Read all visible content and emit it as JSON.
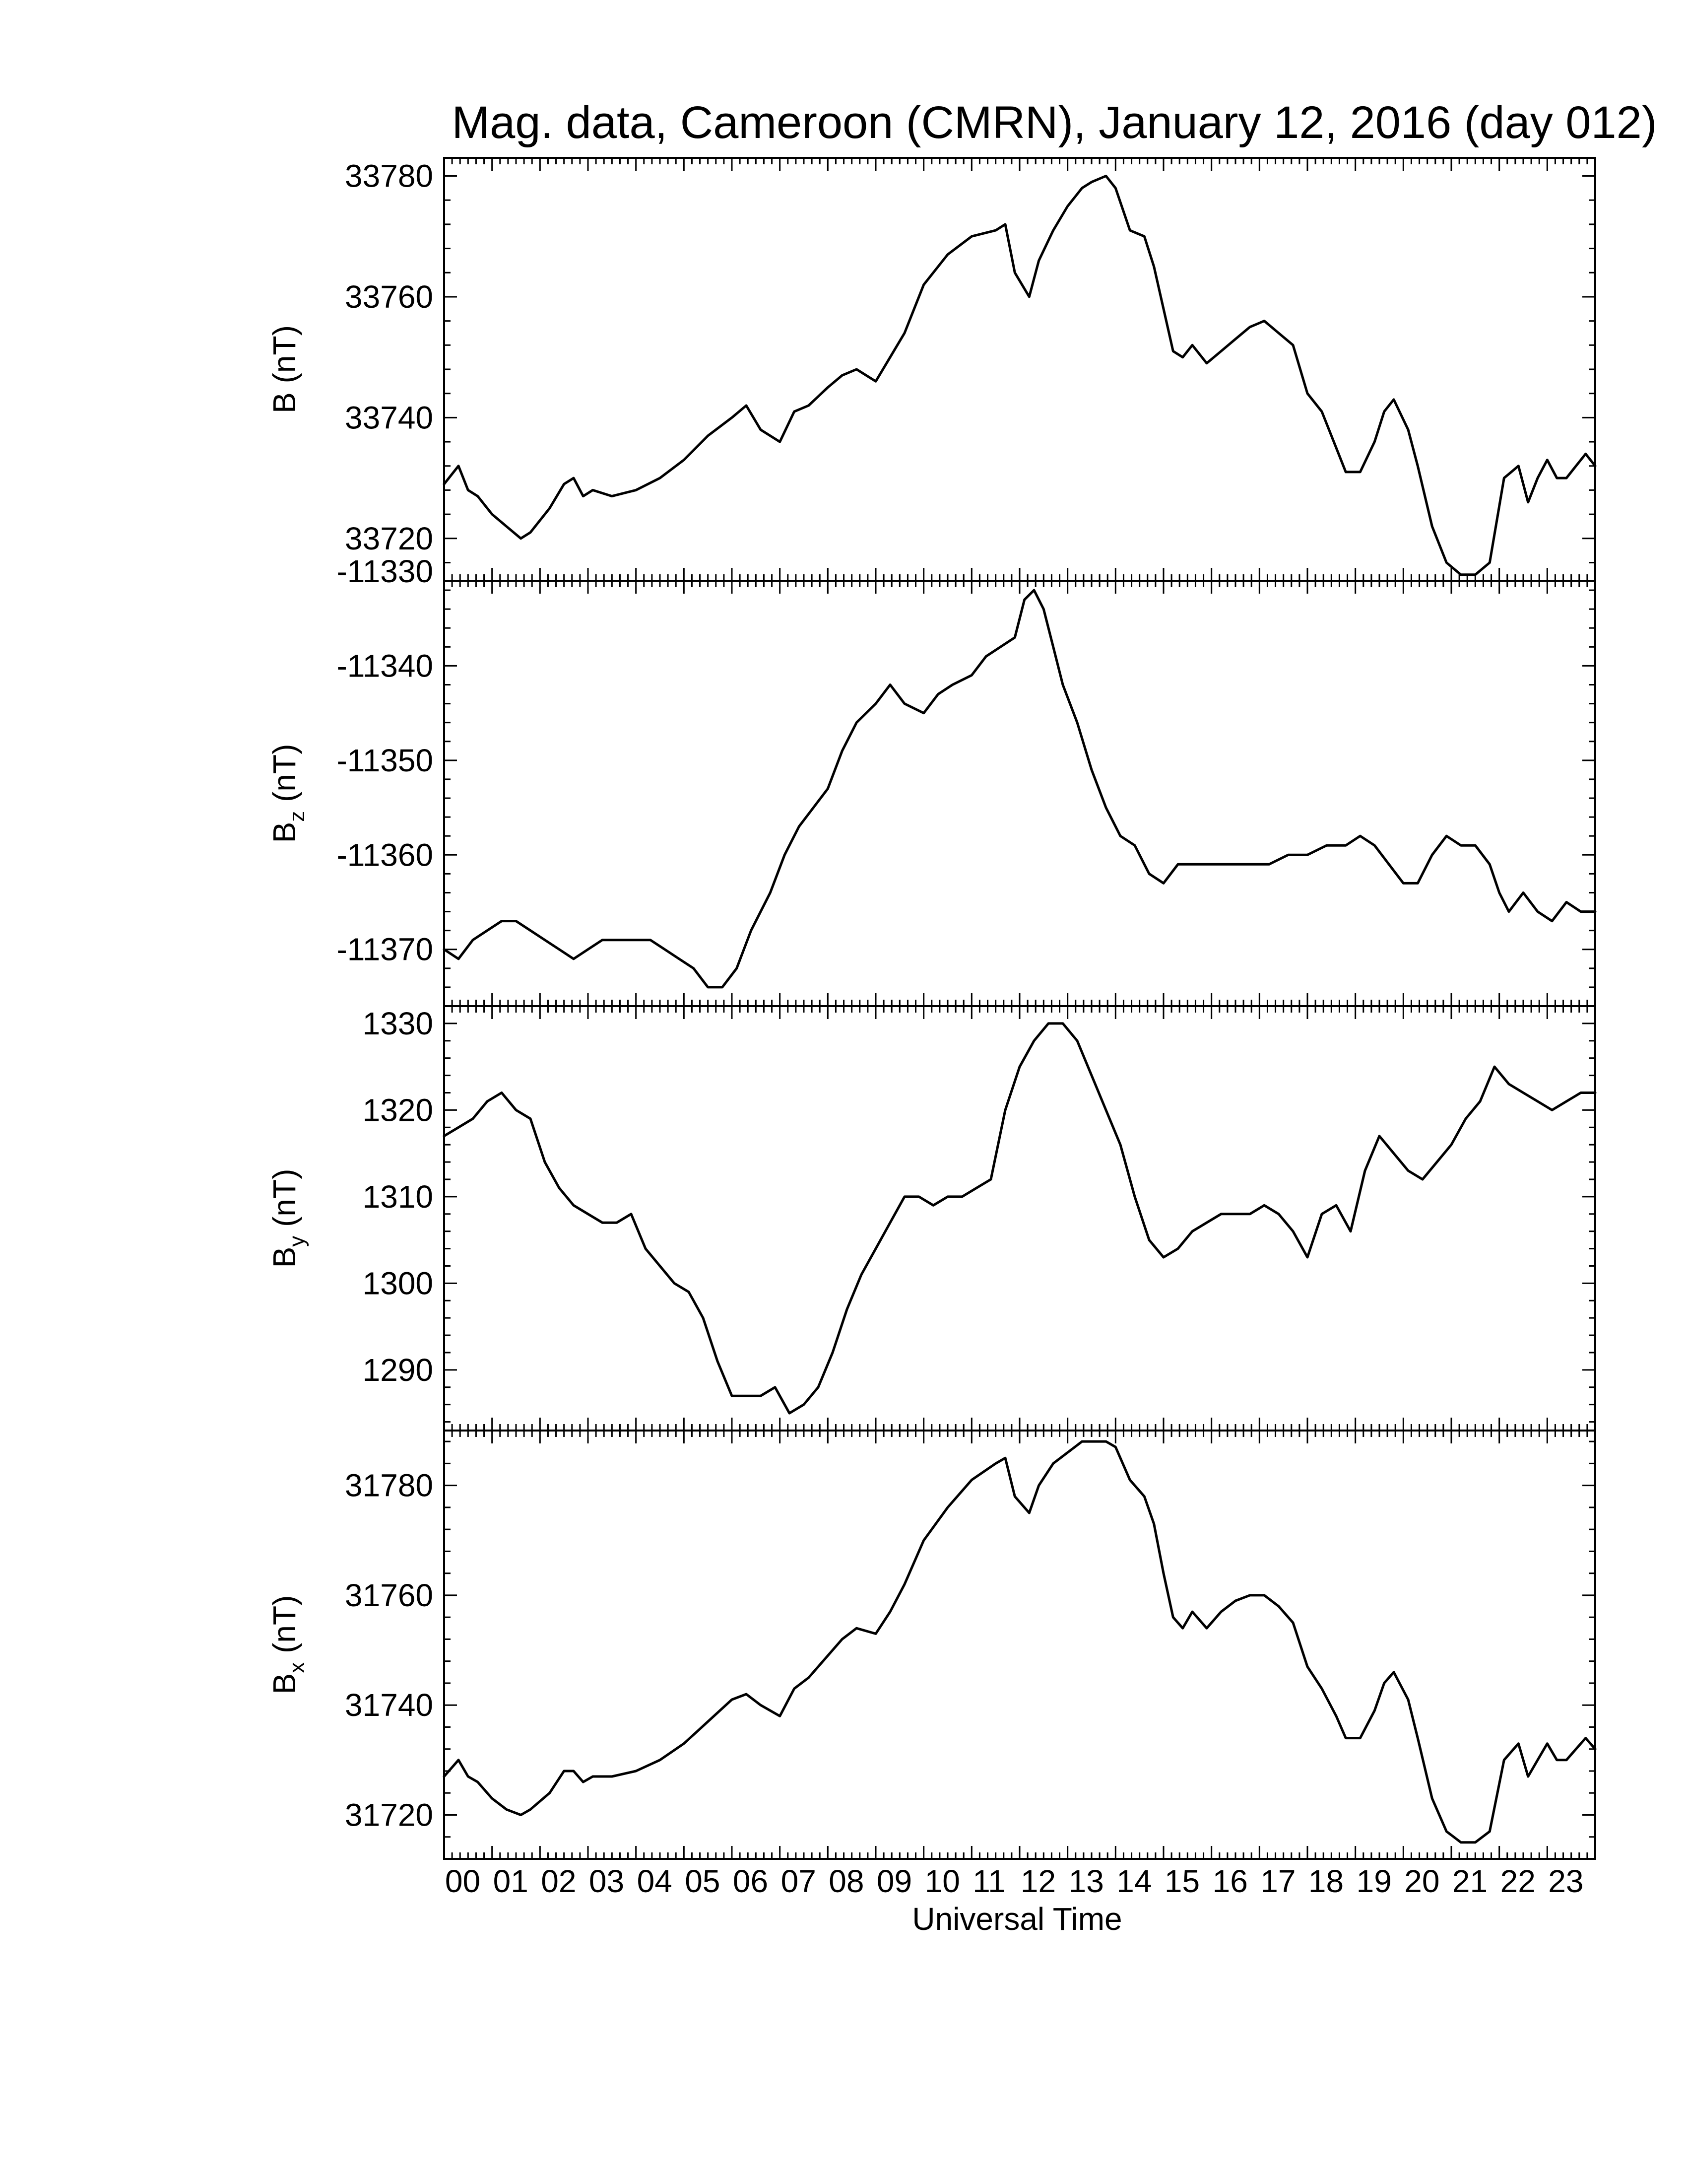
{
  "chart_data": {
    "type": "line",
    "title": "Mag. data, Cameroon (CMRN), January 12, 2016 (day 012)",
    "xlabel": "Universal Time",
    "x_ticks": [
      "00",
      "01",
      "02",
      "03",
      "04",
      "05",
      "06",
      "07",
      "08",
      "09",
      "10",
      "11",
      "12",
      "13",
      "14",
      "15",
      "16",
      "17",
      "18",
      "19",
      "20",
      "21",
      "22",
      "23"
    ],
    "xlim": [
      0,
      24
    ],
    "x_unit": "hours UT",
    "line_color": "#000000",
    "grid": false,
    "legend": "none",
    "panels": [
      {
        "ylabel": "B (nT)",
        "ylabel_main": "B",
        "ylabel_sub": "",
        "ylabel_unit": " (nT)",
        "ylim": [
          33713,
          33783
        ],
        "yticks": [
          33720,
          33740,
          33760,
          33780
        ],
        "ytick_labels": [
          "33720",
          "33740",
          "33760",
          "33780"
        ],
        "x": [
          0,
          0.3,
          0.5,
          0.7,
          1.0,
          1.3,
          1.6,
          1.8,
          2.2,
          2.5,
          2.7,
          2.9,
          3.1,
          3.5,
          4.0,
          4.5,
          5.0,
          5.5,
          6.0,
          6.3,
          6.6,
          7.0,
          7.3,
          7.6,
          8.0,
          8.3,
          8.6,
          9.0,
          9.3,
          9.6,
          10.0,
          10.5,
          11.0,
          11.5,
          11.7,
          11.9,
          12.2,
          12.4,
          12.7,
          13.0,
          13.3,
          13.5,
          13.8,
          14.0,
          14.3,
          14.6,
          14.8,
          15.0,
          15.2,
          15.4,
          15.6,
          15.9,
          16.2,
          16.5,
          16.8,
          17.1,
          17.4,
          17.7,
          18.0,
          18.3,
          18.6,
          18.8,
          19.1,
          19.4,
          19.6,
          19.8,
          20.1,
          20.3,
          20.6,
          20.9,
          21.2,
          21.5,
          21.8,
          22.1,
          22.4,
          22.6,
          22.8,
          23.0,
          23.2,
          23.4,
          23.6,
          23.8,
          24.0
        ],
        "y": [
          33729,
          33732,
          33728,
          33727,
          33724,
          33722,
          33720,
          33721,
          33725,
          33729,
          33730,
          33727,
          33728,
          33727,
          33728,
          33730,
          33733,
          33737,
          33740,
          33742,
          33738,
          33736,
          33741,
          33742,
          33745,
          33747,
          33748,
          33746,
          33750,
          33754,
          33762,
          33767,
          33770,
          33771,
          33772,
          33764,
          33760,
          33766,
          33771,
          33775,
          33778,
          33779,
          33780,
          33778,
          33771,
          33770,
          33765,
          33758,
          33751,
          33750,
          33752,
          33749,
          33751,
          33753,
          33755,
          33756,
          33754,
          33752,
          33744,
          33741,
          33735,
          33731,
          33731,
          33736,
          33741,
          33743,
          33738,
          33732,
          33722,
          33716,
          33714,
          33714,
          33716,
          33730,
          33732,
          33726,
          33730,
          33733,
          33730,
          33730,
          33732,
          33734,
          33732
        ]
      },
      {
        "ylabel": "Bz (nT)",
        "ylabel_main": "B",
        "ylabel_sub": "z",
        "ylabel_unit": " (nT)",
        "ylim": [
          -11376,
          -11331
        ],
        "yticks": [
          -11370,
          -11360,
          -11350,
          -11340,
          -11330
        ],
        "ytick_labels": [
          "-11370",
          "-11360",
          "-11350",
          "-11340",
          "-11330"
        ],
        "x": [
          0,
          0.3,
          0.6,
          0.9,
          1.2,
          1.5,
          1.8,
          2.1,
          2.4,
          2.7,
          3.0,
          3.3,
          3.6,
          4.0,
          4.3,
          4.6,
          4.9,
          5.2,
          5.5,
          5.8,
          6.1,
          6.4,
          6.8,
          7.1,
          7.4,
          7.7,
          8.0,
          8.3,
          8.6,
          9.0,
          9.3,
          9.6,
          10.0,
          10.3,
          10.6,
          11.0,
          11.3,
          11.6,
          11.9,
          12.1,
          12.3,
          12.5,
          12.7,
          12.9,
          13.2,
          13.5,
          13.8,
          14.1,
          14.4,
          14.7,
          15.0,
          15.3,
          15.6,
          16.0,
          16.4,
          16.8,
          17.2,
          17.6,
          18.0,
          18.4,
          18.8,
          19.1,
          19.4,
          19.7,
          20.0,
          20.3,
          20.6,
          20.9,
          21.2,
          21.5,
          21.8,
          22.0,
          22.2,
          22.5,
          22.8,
          23.1,
          23.4,
          23.7,
          24.0
        ],
        "y": [
          -11370,
          -11371,
          -11369,
          -11368,
          -11367,
          -11367,
          -11368,
          -11369,
          -11370,
          -11371,
          -11370,
          -11369,
          -11369,
          -11369,
          -11369,
          -11370,
          -11371,
          -11372,
          -11374,
          -11374,
          -11372,
          -11368,
          -11364,
          -11360,
          -11357,
          -11355,
          -11353,
          -11349,
          -11346,
          -11344,
          -11342,
          -11344,
          -11345,
          -11343,
          -11342,
          -11341,
          -11339,
          -11338,
          -11337,
          -11333,
          -11332,
          -11334,
          -11338,
          -11342,
          -11346,
          -11351,
          -11355,
          -11358,
          -11359,
          -11362,
          -11363,
          -11361,
          -11361,
          -11361,
          -11361,
          -11361,
          -11361,
          -11360,
          -11360,
          -11359,
          -11359,
          -11358,
          -11359,
          -11361,
          -11363,
          -11363,
          -11360,
          -11358,
          -11359,
          -11359,
          -11361,
          -11364,
          -11366,
          -11364,
          -11366,
          -11367,
          -11365,
          -11366,
          -11366
        ]
      },
      {
        "ylabel": "By (nT)",
        "ylabel_main": "B",
        "ylabel_sub": "y",
        "ylabel_unit": " (nT)",
        "ylim": [
          1283,
          1332
        ],
        "yticks": [
          1290,
          1300,
          1310,
          1320,
          1330
        ],
        "ytick_labels": [
          "1290",
          "1300",
          "1310",
          "1320",
          "1330"
        ],
        "x": [
          0,
          0.3,
          0.6,
          0.9,
          1.2,
          1.5,
          1.8,
          2.1,
          2.4,
          2.7,
          3.0,
          3.3,
          3.6,
          3.9,
          4.2,
          4.5,
          4.8,
          5.1,
          5.4,
          5.7,
          6.0,
          6.3,
          6.6,
          6.9,
          7.2,
          7.5,
          7.8,
          8.1,
          8.4,
          8.7,
          9.0,
          9.3,
          9.6,
          9.9,
          10.2,
          10.5,
          10.8,
          11.1,
          11.4,
          11.7,
          12.0,
          12.3,
          12.6,
          12.9,
          13.2,
          13.5,
          13.8,
          14.1,
          14.4,
          14.7,
          15.0,
          15.3,
          15.6,
          15.9,
          16.2,
          16.5,
          16.8,
          17.1,
          17.4,
          17.7,
          18.0,
          18.3,
          18.6,
          18.9,
          19.2,
          19.5,
          19.8,
          20.1,
          20.4,
          20.7,
          21.0,
          21.3,
          21.6,
          21.9,
          22.2,
          22.5,
          22.8,
          23.1,
          23.4,
          23.7,
          24.0
        ],
        "y": [
          1317,
          1318,
          1319,
          1321,
          1322,
          1320,
          1319,
          1314,
          1311,
          1309,
          1308,
          1307,
          1307,
          1308,
          1304,
          1302,
          1300,
          1299,
          1296,
          1291,
          1287,
          1287,
          1287,
          1288,
          1285,
          1286,
          1288,
          1292,
          1297,
          1301,
          1304,
          1307,
          1310,
          1310,
          1309,
          1310,
          1310,
          1311,
          1312,
          1320,
          1325,
          1328,
          1330,
          1330,
          1328,
          1324,
          1320,
          1316,
          1310,
          1305,
          1303,
          1304,
          1306,
          1307,
          1308,
          1308,
          1308,
          1309,
          1308,
          1306,
          1303,
          1308,
          1309,
          1306,
          1313,
          1317,
          1315,
          1313,
          1312,
          1314,
          1316,
          1319,
          1321,
          1325,
          1323,
          1322,
          1321,
          1320,
          1321,
          1322,
          1322
        ]
      },
      {
        "ylabel": "Bx (nT)",
        "ylabel_main": "B",
        "ylabel_sub": "x",
        "ylabel_unit": " (nT)",
        "ylim": [
          31712,
          31790
        ],
        "yticks": [
          31720,
          31740,
          31760,
          31780
        ],
        "ytick_labels": [
          "31720",
          "31740",
          "31760",
          "31780"
        ],
        "x": [
          0,
          0.3,
          0.5,
          0.7,
          1.0,
          1.3,
          1.6,
          1.8,
          2.2,
          2.5,
          2.7,
          2.9,
          3.1,
          3.5,
          4.0,
          4.5,
          5.0,
          5.5,
          6.0,
          6.3,
          6.6,
          7.0,
          7.3,
          7.6,
          8.0,
          8.3,
          8.6,
          9.0,
          9.3,
          9.6,
          10.0,
          10.5,
          11.0,
          11.5,
          11.7,
          11.9,
          12.2,
          12.4,
          12.7,
          13.0,
          13.3,
          13.5,
          13.8,
          14.0,
          14.3,
          14.6,
          14.8,
          15.0,
          15.2,
          15.4,
          15.6,
          15.9,
          16.2,
          16.5,
          16.8,
          17.1,
          17.4,
          17.7,
          18.0,
          18.3,
          18.6,
          18.8,
          19.1,
          19.4,
          19.6,
          19.8,
          20.1,
          20.3,
          20.6,
          20.9,
          21.2,
          21.5,
          21.8,
          22.1,
          22.4,
          22.6,
          22.8,
          23.0,
          23.2,
          23.4,
          23.6,
          23.8,
          24.0
        ],
        "y": [
          31727,
          31730,
          31727,
          31726,
          31723,
          31721,
          31720,
          31721,
          31724,
          31728,
          31728,
          31726,
          31727,
          31727,
          31728,
          31730,
          31733,
          31737,
          31741,
          31742,
          31740,
          31738,
          31743,
          31745,
          31749,
          31752,
          31754,
          31753,
          31757,
          31762,
          31770,
          31776,
          31781,
          31784,
          31785,
          31778,
          31775,
          31780,
          31784,
          31786,
          31788,
          31788,
          31788,
          31787,
          31781,
          31778,
          31773,
          31764,
          31756,
          31754,
          31757,
          31754,
          31757,
          31759,
          31760,
          31760,
          31758,
          31755,
          31747,
          31743,
          31738,
          31734,
          31734,
          31739,
          31744,
          31746,
          31741,
          31734,
          31723,
          31717,
          31715,
          31715,
          31717,
          31730,
          31733,
          31727,
          31730,
          31733,
          31730,
          31730,
          31732,
          31734,
          31732
        ]
      }
    ]
  }
}
